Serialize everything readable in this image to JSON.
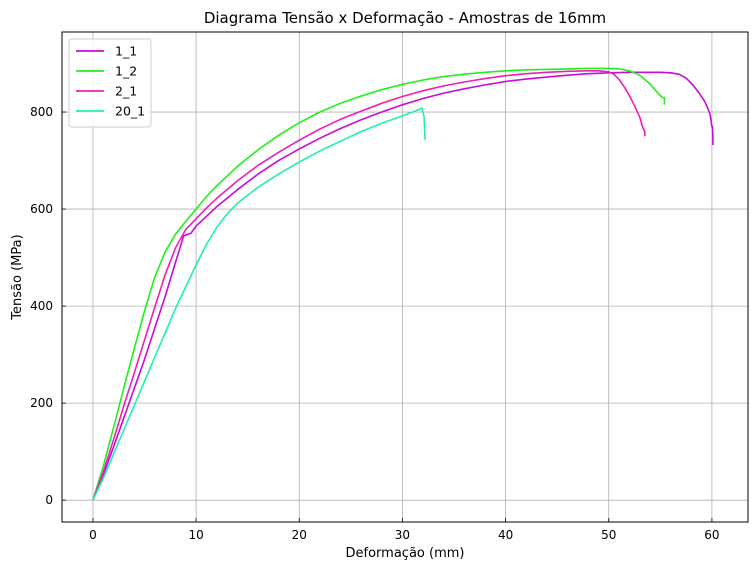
{
  "chart_data": {
    "type": "line",
    "title": "Diagrama Tensão x Deformação - Amostras de 16mm",
    "xlabel": "Deformação (mm)",
    "ylabel": "Tensão (MPa)",
    "xlim": [
      -3,
      63.5
    ],
    "ylim": [
      -45,
      965
    ],
    "xticks": [
      0,
      10,
      20,
      30,
      40,
      50,
      60
    ],
    "yticks": [
      0,
      200,
      400,
      600,
      800
    ],
    "grid": true,
    "legend_position": "top-left",
    "series": [
      {
        "name": "1_1",
        "color": "#c80adc",
        "x": [
          0,
          1,
          2,
          3,
          4,
          5,
          6,
          7,
          8,
          8.8,
          9.5,
          10,
          11,
          12,
          14,
          16,
          18,
          20,
          22,
          24,
          26,
          28,
          30,
          32,
          34,
          36,
          38,
          40,
          42,
          44,
          46,
          48,
          50,
          52,
          54,
          55,
          56,
          56.8,
          57.5,
          58.2,
          58.8,
          59.3,
          59.6,
          59.8,
          59.9,
          60,
          60.05,
          60.1,
          60.1
        ],
        "y": [
          0,
          52,
          110,
          170,
          230,
          290,
          355,
          420,
          490,
          545,
          550,
          565,
          585,
          605,
          640,
          672,
          700,
          724,
          746,
          766,
          784,
          800,
          815,
          828,
          839,
          848,
          856,
          863,
          868,
          872,
          876,
          879,
          881,
          882,
          882,
          882,
          881,
          878,
          870,
          855,
          838,
          822,
          808,
          797,
          785,
          770,
          770,
          750,
          732
        ]
      },
      {
        "name": "1_2",
        "color": "#1ef01e",
        "x": [
          0,
          1,
          2,
          3,
          4,
          5,
          6,
          7,
          8,
          9,
          10,
          11,
          12,
          14,
          16,
          18,
          20,
          22,
          24,
          26,
          28,
          30,
          32,
          34,
          36,
          38,
          40,
          42,
          44,
          46,
          48,
          50,
          51,
          52,
          53,
          54,
          54.8,
          55.2,
          55.4,
          55.4
        ],
        "y": [
          0,
          70,
          150,
          232,
          312,
          390,
          460,
          512,
          548,
          575,
          600,
          626,
          648,
          688,
          722,
          752,
          778,
          800,
          818,
          833,
          846,
          857,
          866,
          873,
          878,
          882,
          885,
          887,
          888,
          889,
          890,
          890,
          889,
          885,
          876,
          858,
          838,
          830,
          830,
          815
        ]
      },
      {
        "name": "2_1",
        "color": "#f01eb4",
        "x": [
          0,
          1,
          2,
          3,
          4,
          5,
          6,
          7,
          8,
          9,
          10,
          11,
          12,
          14,
          16,
          18,
          20,
          22,
          24,
          26,
          28,
          30,
          32,
          34,
          36,
          38,
          40,
          42,
          44,
          46,
          48,
          49,
          50,
          50.5,
          51,
          51.5,
          52,
          52.5,
          53,
          53.3,
          53.5,
          53.5
        ],
        "y": [
          0,
          58,
          125,
          195,
          262,
          330,
          398,
          465,
          520,
          558,
          580,
          602,
          622,
          658,
          690,
          717,
          742,
          765,
          785,
          802,
          818,
          832,
          844,
          854,
          862,
          869,
          875,
          879,
          882,
          884,
          885,
          885,
          883,
          878,
          867,
          852,
          834,
          813,
          790,
          768,
          760,
          750
        ]
      },
      {
        "name": "20_1",
        "color": "#1ef0b4",
        "x": [
          0,
          1,
          2,
          3,
          4,
          5,
          6,
          7,
          8,
          9,
          10,
          11,
          12,
          13,
          14,
          16,
          18,
          20,
          22,
          24,
          26,
          28,
          30,
          31,
          31.9,
          32.1,
          32.2
        ],
        "y": [
          0,
          45,
          95,
          145,
          195,
          245,
          295,
          345,
          395,
          440,
          485,
          527,
          562,
          590,
          612,
          645,
          672,
          697,
          720,
          740,
          760,
          777,
          792,
          800,
          808,
          790,
          742
        ]
      }
    ]
  }
}
